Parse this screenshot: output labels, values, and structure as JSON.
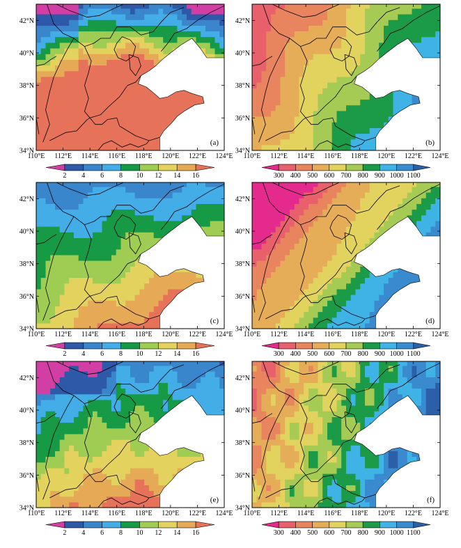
{
  "panels": [
    {
      "label": "(a)",
      "colorbar": "temp",
      "pattern": "a"
    },
    {
      "label": "(b)",
      "colorbar": "precip",
      "pattern": "b"
    },
    {
      "label": "(c)",
      "colorbar": "temp",
      "pattern": "c"
    },
    {
      "label": "(d)",
      "colorbar": "precip",
      "pattern": "d"
    },
    {
      "label": "(e)",
      "colorbar": "temp",
      "pattern": "e"
    },
    {
      "label": "(f)",
      "colorbar": "precip",
      "pattern": "f"
    }
  ],
  "x_ticks": [
    "110°E",
    "112°E",
    "114°E",
    "116°E",
    "118°E",
    "120°E",
    "122°E",
    "124°E"
  ],
  "y_ticks": [
    "34°N",
    "36°N",
    "38°N",
    "40°N",
    "42°N"
  ],
  "colorbars": {
    "temp": {
      "labels": [
        "2",
        "4",
        "6",
        "8",
        "10",
        "12",
        "14",
        "16"
      ],
      "colors": [
        "#d23fa4",
        "#2e58a8",
        "#3a86cc",
        "#42ade6",
        "#169a45",
        "#9fcc52",
        "#e3d25d",
        "#e6aa56",
        "#e6725a"
      ]
    },
    "precip": {
      "labels": [
        "300",
        "400",
        "500",
        "600",
        "700",
        "800",
        "900",
        "1000",
        "1100"
      ],
      "colors": [
        "#e52a8d",
        "#e8606b",
        "#e8855e",
        "#e6ad59",
        "#e2d35e",
        "#a6cb55",
        "#1b9a47",
        "#3fb3e6",
        "#3a8ad0",
        "#2b5fa8"
      ]
    }
  }
}
